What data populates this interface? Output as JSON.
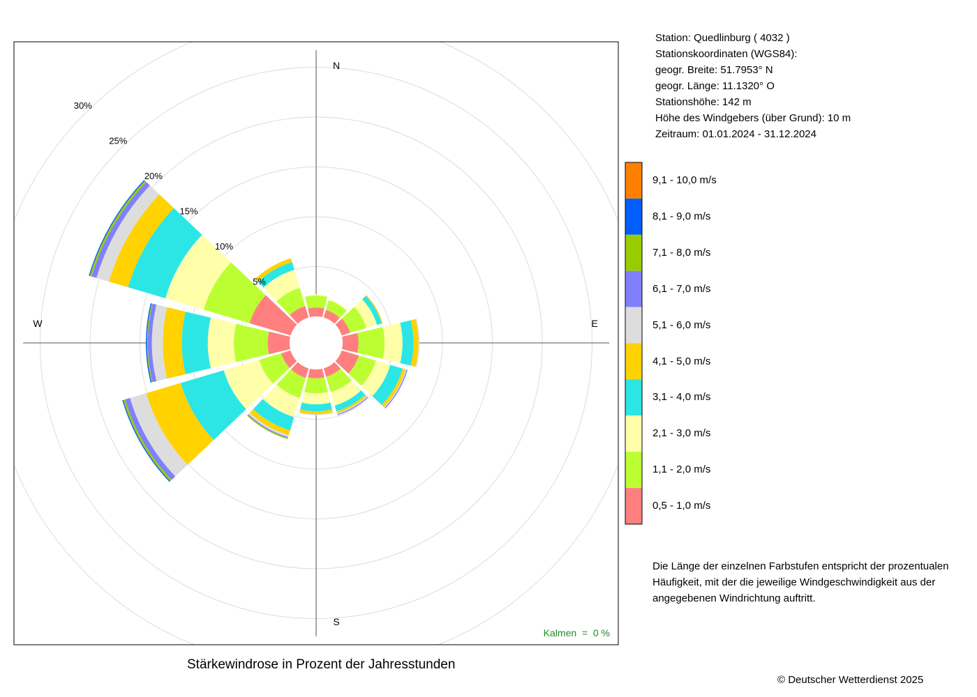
{
  "chart_data": {
    "type": "polar-stacked-bar",
    "title": "Stärkewindrose in Prozent der Jahresstunden",
    "calms_label": "Kalmen  =  0 %",
    "radial_ticks": [
      5,
      10,
      15,
      20,
      25,
      30
    ],
    "radial_tick_labels": [
      "5%",
      "10%",
      "15%",
      "20%",
      "25%",
      "30%"
    ],
    "rmax": 30,
    "cardinal_labels": {
      "north": "N",
      "east": "E",
      "south": "S",
      "west": "W"
    },
    "sectors_deg": [
      0,
      30,
      60,
      90,
      120,
      150,
      180,
      210,
      240,
      270,
      300,
      330
    ],
    "speed_classes": [
      {
        "label": "0,5 - 1,0 m/s",
        "color": "#ff7f7f"
      },
      {
        "label": "1,1 - 2,0 m/s",
        "color": "#bbff33"
      },
      {
        "label": "2,1 - 3,0 m/s",
        "color": "#ffffaa"
      },
      {
        "label": "3,1 - 4,0 m/s",
        "color": "#2ce6e6"
      },
      {
        "label": "4,1 - 5,0 m/s",
        "color": "#ffd200"
      },
      {
        "label": "5,1 - 6,0 m/s",
        "color": "#dddddd"
      },
      {
        "label": "6,1 - 7,0 m/s",
        "color": "#8080ff"
      },
      {
        "label": "7,1 - 8,0 m/s",
        "color": "#99cc00"
      },
      {
        "label": "8,1 - 9,0 m/s",
        "color": "#005eff"
      },
      {
        "label": "9,1 - 10,0 m/s",
        "color": "#ff8000"
      }
    ],
    "series": [
      {
        "name": "0,5 - 1,0 m/s",
        "values": [
          0.9,
          0.8,
          0.9,
          1.6,
          1.8,
          0.9,
          0.9,
          1.0,
          1.0,
          2.2,
          4.3,
          1.2
        ]
      },
      {
        "name": "1,1 - 2,0 m/s",
        "values": [
          1.2,
          1.0,
          1.7,
          2.6,
          1.8,
          1.6,
          1.5,
          2.1,
          2.3,
          3.4,
          4.8,
          1.9
        ]
      },
      {
        "name": "2,1 - 3,0 m/s",
        "values": [
          0.1,
          0.1,
          1.1,
          1.8,
          1.5,
          1.4,
          1.1,
          2.0,
          3.7,
          2.6,
          4.0,
          1.9
        ]
      },
      {
        "name": "3,1 - 4,0 m/s",
        "values": [
          0.0,
          0.0,
          0.5,
          1.1,
          1.3,
          0.6,
          0.7,
          1.4,
          4.5,
          2.6,
          3.9,
          0.8
        ]
      },
      {
        "name": "4,1 - 5,0 m/s",
        "values": [
          0.0,
          0.0,
          0.1,
          0.5,
          0.3,
          0.2,
          0.3,
          0.5,
          3.6,
          1.9,
          2.0,
          0.4
        ]
      },
      {
        "name": "5,1 - 6,0 m/s",
        "values": [
          0.0,
          0.0,
          0.0,
          0.1,
          0.1,
          0.1,
          0.1,
          0.2,
          1.7,
          1.1,
          1.3,
          0.0
        ]
      },
      {
        "name": "6,1 - 7,0 m/s",
        "values": [
          0.0,
          0.0,
          0.0,
          0.0,
          0.1,
          0.1,
          0.0,
          0.1,
          0.5,
          0.4,
          0.5,
          0.0
        ]
      },
      {
        "name": "7,1 - 8,0 m/s",
        "values": [
          0.0,
          0.0,
          0.0,
          0.0,
          0.0,
          0.0,
          0.0,
          0.1,
          0.2,
          0.1,
          0.2,
          0.0
        ]
      },
      {
        "name": "8,1 - 9,0 m/s",
        "values": [
          0.0,
          0.0,
          0.0,
          0.0,
          0.0,
          0.0,
          0.0,
          0.0,
          0.1,
          0.1,
          0.1,
          0.0
        ]
      },
      {
        "name": "9,1 - 10,0 m/s",
        "values": [
          0.0,
          0.0,
          0.0,
          0.0,
          0.0,
          0.0,
          0.0,
          0.0,
          0.0,
          0.0,
          0.0,
          0.0
        ]
      }
    ]
  },
  "station_info": [
    "Station:  Quedlinburg  ( 4032 )",
    "Stationskoordinaten (WGS84):",
    "geogr. Breite: 51.7953° N",
    "geogr. Länge: 11.1320° O",
    "Stationshöhe: 142 m",
    "Höhe des Windgebers (über Grund): 10 m",
    "Zeitraum: 01.01.2024 - 31.12.2024"
  ],
  "note_lines": [
    "Die Länge der einzelnen Farbstufen entspricht der prozentualen",
    "Häufigkeit, mit der die jeweilige Windgeschwindigkeit aus der",
    "angegebenen Windrichtung auftritt."
  ],
  "copyright": "© Deutscher Wetterdienst  2025"
}
